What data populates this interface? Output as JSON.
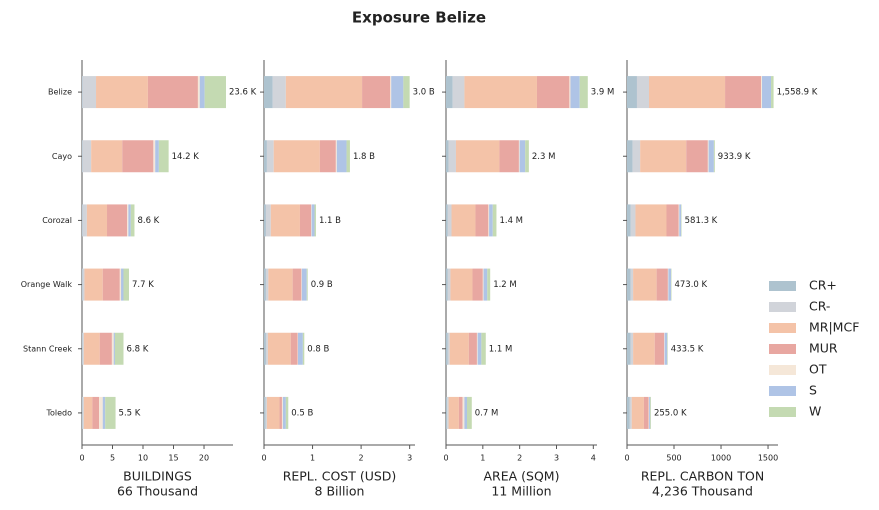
{
  "title": "Exposure Belize",
  "categories": [
    "Belize",
    "Cayo",
    "Corozal",
    "Orange Walk",
    "Stann Creek",
    "Toledo"
  ],
  "legend": [
    {
      "name": "CR+",
      "color": "#aec3cf"
    },
    {
      "name": "CR-",
      "color": "#d1d4da"
    },
    {
      "name": "MR|MCF",
      "color": "#f4c3a8"
    },
    {
      "name": "MUR",
      "color": "#e8a7a1"
    },
    {
      "name": "OT",
      "color": "#f5e7d8"
    },
    {
      "name": "S",
      "color": "#afc4e6"
    },
    {
      "name": "W",
      "color": "#c4dab2"
    }
  ],
  "chart_data": [
    {
      "type": "bar",
      "xlabel_lines": [
        "BUILDINGS",
        "66 Thousand"
      ],
      "xlim": [
        0,
        24.75
      ],
      "xticks": [
        0,
        5,
        10,
        15,
        20
      ],
      "totals": [
        23.6,
        14.2,
        8.6,
        7.7,
        6.8,
        5.5
      ],
      "total_labels": [
        "23.6 K",
        "14.2 K",
        "8.6 K",
        "7.7 K",
        "6.8 K",
        "5.5 K"
      ],
      "series": [
        {
          "values": [
            0.1,
            0.1,
            0.1,
            0.1,
            0.1,
            0.1
          ]
        },
        {
          "values": [
            2.2,
            1.4,
            0.7,
            0.3,
            0.2,
            0.2
          ]
        },
        {
          "values": [
            8.5,
            5.1,
            3.3,
            3.0,
            2.6,
            1.4
          ]
        },
        {
          "values": [
            8.2,
            5.1,
            3.3,
            2.8,
            2.0,
            1.1
          ]
        },
        {
          "values": [
            0.3,
            0.3,
            0.2,
            0.2,
            0.3,
            0.6
          ]
        },
        {
          "values": [
            0.8,
            0.6,
            0.4,
            0.4,
            0.2,
            0.4
          ]
        },
        {
          "values": [
            3.5,
            1.6,
            0.6,
            0.9,
            1.4,
            1.7
          ]
        }
      ]
    },
    {
      "type": "bar",
      "xlabel_lines": [
        "REPL. COST (USD)",
        "8 Billion"
      ],
      "xlim": [
        0,
        3.11
      ],
      "xticks": [
        0,
        1,
        2,
        3
      ],
      "totals": [
        3.0,
        1.77,
        1.07,
        0.9,
        0.83,
        0.5
      ],
      "total_labels": [
        "3.0 B",
        "1.8 B",
        "1.1 B",
        "0.9 B",
        "0.8 B",
        "0.5 B"
      ],
      "series": [
        {
          "values": [
            0.18,
            0.06,
            0.04,
            0.04,
            0.04,
            0.03
          ]
        },
        {
          "values": [
            0.27,
            0.14,
            0.1,
            0.05,
            0.04,
            0.03
          ]
        },
        {
          "values": [
            1.57,
            0.95,
            0.6,
            0.5,
            0.47,
            0.26
          ]
        },
        {
          "values": [
            0.58,
            0.33,
            0.23,
            0.18,
            0.14,
            0.05
          ]
        },
        {
          "values": [
            0.02,
            0.02,
            0.01,
            0.01,
            0.01,
            0.02
          ]
        },
        {
          "values": [
            0.25,
            0.2,
            0.06,
            0.1,
            0.1,
            0.06
          ]
        },
        {
          "values": [
            0.13,
            0.07,
            0.03,
            0.02,
            0.03,
            0.05
          ]
        }
      ]
    },
    {
      "type": "bar",
      "xlabel_lines": [
        "AREA (SQM)",
        "11 Million"
      ],
      "xlim": [
        0,
        4.1
      ],
      "xticks": [
        0,
        1,
        2,
        3,
        4
      ],
      "totals": [
        3.85,
        2.25,
        1.37,
        1.2,
        1.08,
        0.7
      ],
      "total_labels": [
        "3.9 M",
        "2.3 M",
        "1.4 M",
        "1.2 M",
        "1.1 M",
        "0.7 M"
      ],
      "series": [
        {
          "values": [
            0.18,
            0.07,
            0.05,
            0.05,
            0.05,
            0.03
          ]
        },
        {
          "values": [
            0.32,
            0.2,
            0.1,
            0.07,
            0.05,
            0.04
          ]
        },
        {
          "values": [
            1.97,
            1.18,
            0.65,
            0.6,
            0.52,
            0.28
          ]
        },
        {
          "values": [
            0.88,
            0.53,
            0.35,
            0.28,
            0.22,
            0.1
          ]
        },
        {
          "values": [
            0.03,
            0.02,
            0.02,
            0.02,
            0.02,
            0.05
          ]
        },
        {
          "values": [
            0.25,
            0.15,
            0.1,
            0.1,
            0.1,
            0.07
          ]
        },
        {
          "values": [
            0.22,
            0.1,
            0.1,
            0.08,
            0.12,
            0.13
          ]
        }
      ]
    },
    {
      "type": "bar",
      "xlabel_lines": [
        "REPL. CARBON TON",
        "4,236 Thousand"
      ],
      "xlim": [
        0,
        1606
      ],
      "xticks": [
        0,
        500,
        1000,
        1500
      ],
      "totals": [
        1558.9,
        933.9,
        581.3,
        473.0,
        433.5,
        255.0
      ],
      "total_labels": [
        "1,558.9 K",
        "933.9 K",
        "581.3 K",
        "473.0 K",
        "433.5 K",
        "255.0 K"
      ],
      "series": [
        {
          "values": [
            106,
            60,
            40,
            40,
            40,
            30
          ]
        },
        {
          "values": [
            128,
            80,
            50,
            25,
            25,
            20
          ]
        },
        {
          "values": [
            809,
            490,
            330,
            250,
            230,
            130
          ]
        },
        {
          "values": [
            383,
            230,
            130,
            120,
            100,
            50
          ]
        },
        {
          "values": [
            10,
            8,
            6,
            5,
            5,
            5
          ]
        },
        {
          "values": [
            96,
            56,
            20,
            28,
            28,
            12
          ]
        },
        {
          "values": [
            27,
            10,
            5,
            5,
            5.5,
            8
          ]
        }
      ]
    }
  ]
}
